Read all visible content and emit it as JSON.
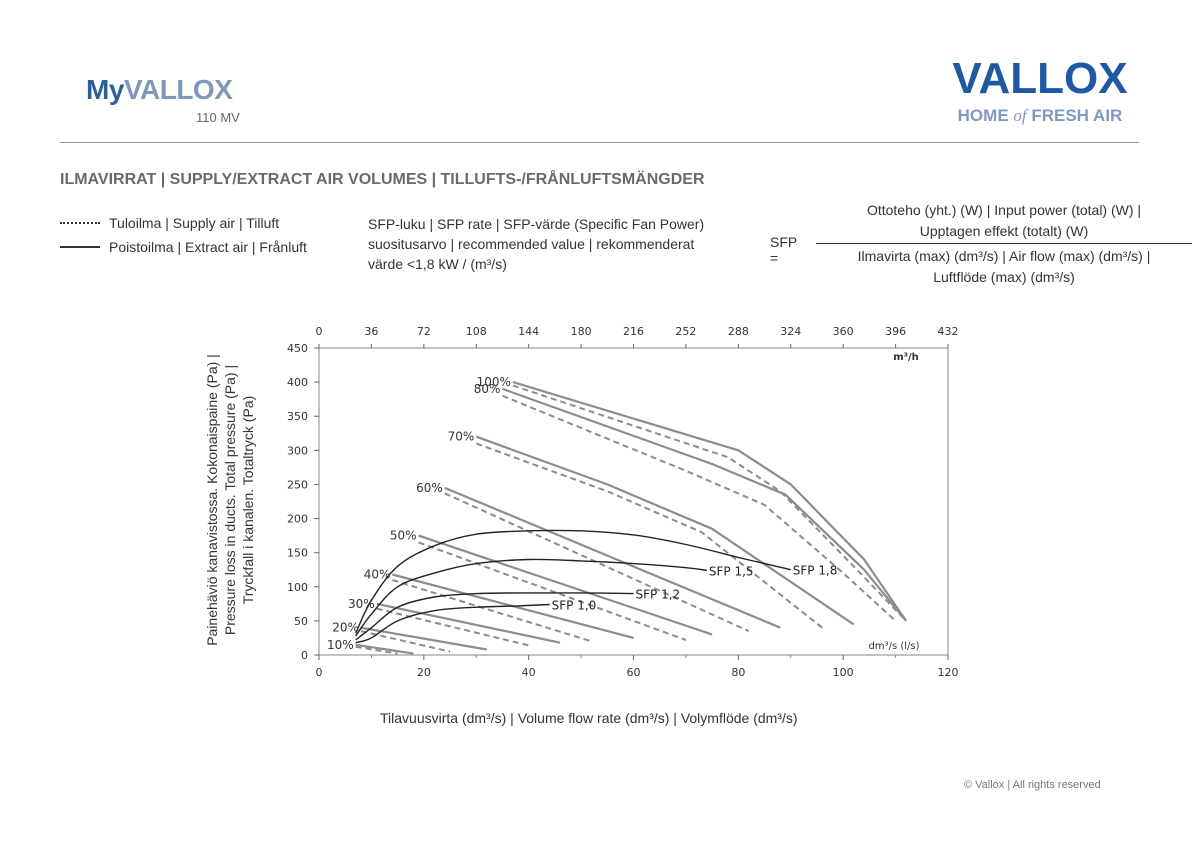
{
  "header": {
    "brand_prefix": "My",
    "brand_name": "VALLOX",
    "model": "110 MV",
    "logo_main": "VALLOX",
    "logo_tag_1": "HOME ",
    "logo_tag_of": "of",
    "logo_tag_2": " FRESH AIR"
  },
  "section_title": "ILMAVIRRAT | SUPPLY/EXTRACT AIR VOLUMES | TILLUFTS-/FRÅNLUFTSMÄNGDER",
  "legend": {
    "supply": "Tuloilma | Supply air | Tilluft",
    "extract": "Poistoilma | Extract air | Frånluft"
  },
  "sfp_info": {
    "line1": "SFP-luku | SFP rate | SFP-värde (Specific Fan Power)",
    "line2": "suositusarvo | recommended value | rekommenderat",
    "line3": "värde <1,8 kW / (m³/s)"
  },
  "formula": {
    "label": "SFP =",
    "num1": "Ottoteho (yht.) (W) | Input power (total) (W) |",
    "num2": "Upptagen effekt (totalt) (W)",
    "den1": "Ilmavirta (max) (dm³/s) | Air flow (max) (dm³/s) |",
    "den2": "Luftflöde (max) (dm³/s)"
  },
  "footer": {
    "copyright": "© Vallox | All rights reserved"
  },
  "colors": {
    "brand_blue": "#1f58a3",
    "brand_light": "#7f9ac0",
    "curve_grey": "#8c8c8c",
    "sfp_black": "#222222"
  },
  "chart_data": {
    "type": "line",
    "xlabel": "Tilavuusvirta (dm³/s) | Volume flow rate (dm³/s) | Volymflöde (dm³/s)",
    "ylabel_lines": [
      "Painehäviö kanavistossa. Kokonaispaine (Pa) |",
      "Pressure loss in ducts. Total pressure (Pa) |",
      "Tryckfall i kanalen. Totaltryck (Pa)"
    ],
    "xlim": [
      0,
      120
    ],
    "ylim": [
      0,
      450
    ],
    "x_ticks": [
      0,
      20,
      40,
      60,
      80,
      100,
      120
    ],
    "y_ticks": [
      0,
      50,
      100,
      150,
      200,
      250,
      300,
      350,
      400,
      450
    ],
    "top_axis_ticks": [
      "0",
      "36",
      "72",
      "108",
      "144",
      "180",
      "216",
      "252",
      "288",
      "324",
      "360",
      "396",
      "432"
    ],
    "top_axis_unit": "m³/h",
    "bottom_axis_unit": "dm³/s (l/s)",
    "grid": false,
    "fan_speed_series": [
      {
        "label": "10%",
        "extract": [
          [
            7,
            15
          ],
          [
            18,
            2
          ]
        ],
        "supply": [
          [
            7,
            12
          ],
          [
            15,
            2
          ]
        ]
      },
      {
        "label": "20%",
        "extract": [
          [
            8,
            40
          ],
          [
            32,
            8
          ]
        ],
        "supply": [
          [
            8,
            35
          ],
          [
            25,
            5
          ]
        ]
      },
      {
        "label": "30%",
        "extract": [
          [
            11,
            75
          ],
          [
            46,
            18
          ]
        ],
        "supply": [
          [
            11,
            68
          ],
          [
            40,
            14
          ]
        ]
      },
      {
        "label": "40%",
        "extract": [
          [
            14,
            118
          ],
          [
            60,
            25
          ]
        ],
        "supply": [
          [
            14,
            110
          ],
          [
            52,
            20
          ]
        ]
      },
      {
        "label": "50%",
        "extract": [
          [
            19,
            175
          ],
          [
            75,
            30
          ]
        ],
        "supply": [
          [
            19,
            165
          ],
          [
            70,
            22
          ]
        ]
      },
      {
        "label": "60%",
        "extract": [
          [
            24,
            245
          ],
          [
            88,
            40
          ]
        ],
        "supply": [
          [
            24,
            237
          ],
          [
            82,
            35
          ]
        ]
      },
      {
        "label": "70%",
        "extract": [
          [
            30,
            320
          ],
          [
            55,
            250
          ],
          [
            75,
            185
          ],
          [
            102,
            45
          ]
        ],
        "supply": [
          [
            30,
            310
          ],
          [
            55,
            240
          ],
          [
            73,
            180
          ],
          [
            96,
            40
          ]
        ]
      },
      {
        "label": "80%",
        "extract": [
          [
            35,
            390
          ],
          [
            75,
            280
          ],
          [
            89,
            235
          ],
          [
            104,
            125
          ],
          [
            112,
            50
          ]
        ],
        "supply": [
          [
            35,
            380
          ],
          [
            70,
            270
          ],
          [
            85,
            220
          ],
          [
            100,
            120
          ],
          [
            110,
            50
          ]
        ]
      },
      {
        "label": "100%",
        "extract": [
          [
            37,
            400
          ],
          [
            80,
            300
          ],
          [
            90,
            250
          ],
          [
            104,
            140
          ],
          [
            112,
            50
          ]
        ],
        "supply": [
          [
            37,
            395
          ],
          [
            78,
            290
          ],
          [
            88,
            240
          ],
          [
            102,
            130
          ],
          [
            112,
            50
          ]
        ]
      }
    ],
    "sfp_series": [
      {
        "label": "SFP 1,0",
        "points": [
          [
            7,
            18
          ],
          [
            10,
            25
          ],
          [
            15,
            50
          ],
          [
            22,
            65
          ],
          [
            30,
            70
          ],
          [
            38,
            72
          ],
          [
            44,
            74
          ]
        ]
      },
      {
        "label": "SFP 1,2",
        "points": [
          [
            7,
            22
          ],
          [
            10,
            40
          ],
          [
            15,
            70
          ],
          [
            22,
            85
          ],
          [
            30,
            90
          ],
          [
            40,
            91
          ],
          [
            50,
            91
          ],
          [
            60,
            90
          ]
        ]
      },
      {
        "label": "SFP 1,5",
        "points": [
          [
            7,
            28
          ],
          [
            10,
            60
          ],
          [
            15,
            100
          ],
          [
            22,
            120
          ],
          [
            30,
            134
          ],
          [
            40,
            140
          ],
          [
            50,
            138
          ],
          [
            60,
            134
          ],
          [
            70,
            128
          ],
          [
            74,
            124
          ]
        ]
      },
      {
        "label": "SFP 1,8",
        "points": [
          [
            7,
            32
          ],
          [
            10,
            80
          ],
          [
            15,
            130
          ],
          [
            22,
            160
          ],
          [
            30,
            177
          ],
          [
            40,
            182
          ],
          [
            50,
            182
          ],
          [
            60,
            176
          ],
          [
            70,
            162
          ],
          [
            80,
            143
          ],
          [
            90,
            125
          ]
        ]
      }
    ]
  }
}
